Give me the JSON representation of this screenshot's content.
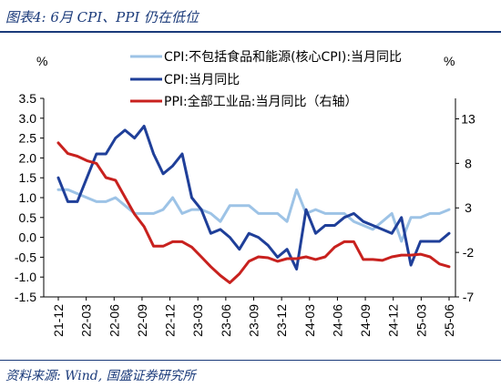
{
  "header": {
    "title": "图表4:  6月 CPI、PPI 仍在低位"
  },
  "footer": {
    "source": "资料来源:  Wind,  国盛证券研究所"
  },
  "chart_data": {
    "type": "line",
    "left_unit": "%",
    "right_unit": "%",
    "left_ylim": [
      -1.5,
      3.5
    ],
    "left_ticks": [
      "3.5",
      "3.0",
      "2.5",
      "2.0",
      "1.5",
      "1.0",
      "0.5",
      "0.0",
      "-0.5",
      "-1.0",
      "-1.5"
    ],
    "right_ylim": [
      -7,
      15.3
    ],
    "right_ticks": [
      "13",
      "8",
      "3",
      "-2",
      "-7"
    ],
    "x_labels": [
      "21-12",
      "22-03",
      "22-06",
      "22-09",
      "22-12",
      "23-03",
      "23-06",
      "23-09",
      "23-12",
      "24-03",
      "24-06",
      "24-09",
      "24-12",
      "25-03",
      "25-06"
    ],
    "legend": [
      "CPI:不包括食品和能源(核心CPI):当月同比",
      "CPI:当月同比",
      "PPI:全部工业品:当月同比（右轴）"
    ],
    "series": [
      {
        "name": "CPI:不包括食品和能源(核心CPI):当月同比",
        "axis": "left",
        "color": "#9dc3e6",
        "values": [
          1.2,
          1.2,
          1.1,
          1.0,
          0.9,
          0.9,
          1.0,
          0.8,
          0.6,
          0.6,
          0.6,
          0.7,
          1.0,
          0.6,
          0.7,
          0.7,
          0.6,
          0.4,
          0.8,
          0.8,
          0.8,
          0.6,
          0.6,
          0.6,
          0.4,
          1.2,
          0.6,
          0.7,
          0.6,
          0.6,
          0.6,
          0.4,
          0.3,
          0.2,
          0.4,
          0.6,
          -0.1,
          0.5,
          0.5,
          0.6,
          0.6,
          0.7
        ]
      },
      {
        "name": "CPI:当月同比",
        "axis": "left",
        "color": "#1f3f99",
        "values": [
          1.5,
          0.9,
          0.9,
          1.5,
          2.1,
          2.1,
          2.5,
          2.7,
          2.5,
          2.8,
          2.1,
          1.6,
          1.8,
          2.1,
          1.0,
          0.7,
          0.1,
          0.2,
          0.0,
          -0.3,
          0.1,
          0.0,
          -0.2,
          -0.5,
          -0.3,
          -0.8,
          0.7,
          0.1,
          0.3,
          0.3,
          0.5,
          0.6,
          0.4,
          0.3,
          0.2,
          0.1,
          0.5,
          -0.7,
          -0.1,
          -0.1,
          -0.1,
          0.1
        ]
      },
      {
        "name": "PPI:全部工业品:当月同比（右轴）",
        "axis": "right",
        "color": "#c8211e",
        "values": [
          10.3,
          9.1,
          8.8,
          8.3,
          8.0,
          6.4,
          6.1,
          4.2,
          2.3,
          0.9,
          -1.3,
          -1.3,
          -0.8,
          -0.8,
          -1.4,
          -2.5,
          -3.6,
          -4.6,
          -5.4,
          -4.4,
          -3.0,
          -2.5,
          -2.6,
          -3.0,
          -2.7,
          -2.7,
          -2.5,
          -2.8,
          -2.5,
          -1.4,
          -0.8,
          -0.8,
          -2.8,
          -2.8,
          -2.9,
          -2.5,
          -2.3,
          -2.3,
          -2.2,
          -2.5,
          -3.3,
          -3.6
        ]
      }
    ]
  }
}
